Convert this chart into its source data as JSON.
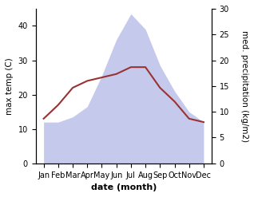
{
  "months": [
    "Jan",
    "Feb",
    "Mar",
    "Apr",
    "May",
    "Jun",
    "Jul",
    "Aug",
    "Sep",
    "Oct",
    "Nov",
    "Dec"
  ],
  "temp": [
    13,
    17,
    22,
    24,
    25,
    26,
    28,
    28,
    22,
    18,
    13,
    12
  ],
  "precip": [
    8,
    8,
    9,
    11,
    17,
    24,
    29,
    26,
    19,
    14,
    10,
    8
  ],
  "temp_color": "#993333",
  "precip_fill_color": "#c5caec",
  "left_ylabel": "max temp (C)",
  "right_ylabel": "med. precipitation (kg/m2)",
  "xlabel": "date (month)",
  "left_ylim": [
    0,
    45
  ],
  "right_ylim": [
    0,
    30
  ],
  "left_yticks": [
    0,
    10,
    20,
    30,
    40
  ],
  "right_yticks": [
    0,
    5,
    10,
    15,
    20,
    25,
    30
  ],
  "bg_color": "#ffffff"
}
